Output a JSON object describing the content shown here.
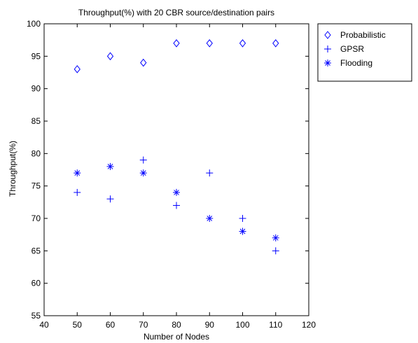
{
  "chart_data": {
    "type": "scatter",
    "title": "Throughput(%) with 20 CBR source/destination pairs",
    "xlabel": "Number of Nodes",
    "ylabel": "Throughput(%)",
    "xlim": [
      40,
      120
    ],
    "ylim": [
      55,
      100
    ],
    "xticks": [
      "40",
      "50",
      "60",
      "70",
      "80",
      "90",
      "100",
      "110",
      "120"
    ],
    "yticks": [
      "55",
      "60",
      "65",
      "70",
      "75",
      "80",
      "85",
      "90",
      "95",
      "100"
    ],
    "grid": false,
    "legend_position": "outside-top-right",
    "marker_color": "#0000ff",
    "series": [
      {
        "name": "Probabilistic",
        "marker": "diamond",
        "x": [
          50,
          60,
          70,
          80,
          90,
          100,
          110
        ],
        "y": [
          93,
          95,
          94,
          97,
          97,
          97,
          97
        ]
      },
      {
        "name": "GPSR",
        "marker": "plus",
        "x": [
          50,
          60,
          70,
          80,
          90,
          100,
          110
        ],
        "y": [
          74,
          73,
          79,
          72,
          77,
          70,
          65
        ]
      },
      {
        "name": "Flooding",
        "marker": "asterisk",
        "x": [
          50,
          60,
          70,
          80,
          90,
          100,
          110
        ],
        "y": [
          77,
          78,
          77,
          74,
          70,
          68,
          67
        ]
      }
    ]
  }
}
